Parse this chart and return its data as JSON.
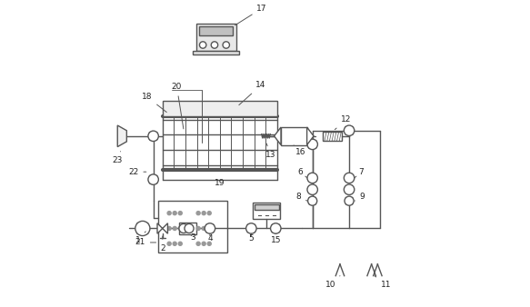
{
  "bg_color": "#ffffff",
  "line_color": "#555555",
  "lw": 1.0,
  "figsize": [
    5.83,
    3.38
  ],
  "dpi": 100
}
